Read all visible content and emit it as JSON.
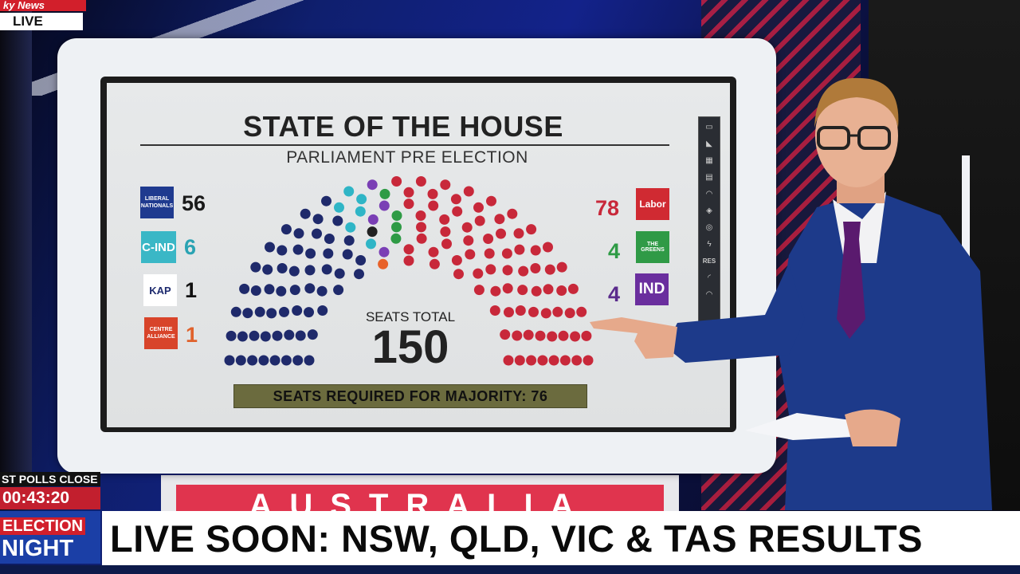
{
  "network": {
    "logo_text": "ky News",
    "live_label": "LIVE"
  },
  "screen": {
    "title": "STATE OF THE HOUSE",
    "subtitle": "PARLIAMENT PRE ELECTION",
    "seats_total_label": "SEATS TOTAL",
    "seats_total_value": "150",
    "majority_text": "SEATS REQUIRED FOR MAJORITY: 76",
    "banner_text": "AUSTRALIA",
    "left_parties": [
      {
        "logo_text": "LIBERAL NATIONALS",
        "count": "56",
        "color": "#1f2a6b"
      },
      {
        "logo_text": "C-IND",
        "count": "6",
        "color": "#2fb5c6"
      },
      {
        "logo_text": "KAP",
        "count": "1",
        "color": "#222222"
      },
      {
        "logo_text": "CENTRE ALLIANCE",
        "count": "1",
        "color": "#e8622a"
      }
    ],
    "right_parties": [
      {
        "logo_text": "Labor",
        "count": "78",
        "color": "#c8283a"
      },
      {
        "logo_text": "THE GREENS",
        "count": "4",
        "color": "#2e9b45"
      },
      {
        "logo_text": "IND",
        "count": "4",
        "color": "#6a2e9e"
      }
    ],
    "toolbar_res_label": "RES"
  },
  "lower_third": {
    "polls_label": "ST POLLS CLOSE",
    "countdown": "00:43:20",
    "election_line1": "ELECTION",
    "election_line2": "NIGHT",
    "ticker_text": "LIVE SOON: NSW, QLD, VIC & TAS RESULTS"
  },
  "chart_data": {
    "type": "parliament",
    "total": 150,
    "majority": 76,
    "series": [
      {
        "name": "LIBERAL NATIONALS",
        "value": 56,
        "color": "#1f2a6b"
      },
      {
        "name": "C-IND",
        "value": 6,
        "color": "#2fb5c6"
      },
      {
        "name": "KAP",
        "value": 1,
        "color": "#222222"
      },
      {
        "name": "CENTRE ALLIANCE",
        "value": 1,
        "color": "#e8622a"
      },
      {
        "name": "IND",
        "value": 4,
        "color": "#7a3fb5"
      },
      {
        "name": "THE GREENS",
        "value": 4,
        "color": "#2e9b45"
      },
      {
        "name": "Labor",
        "value": 78,
        "color": "#c8283a"
      }
    ]
  }
}
